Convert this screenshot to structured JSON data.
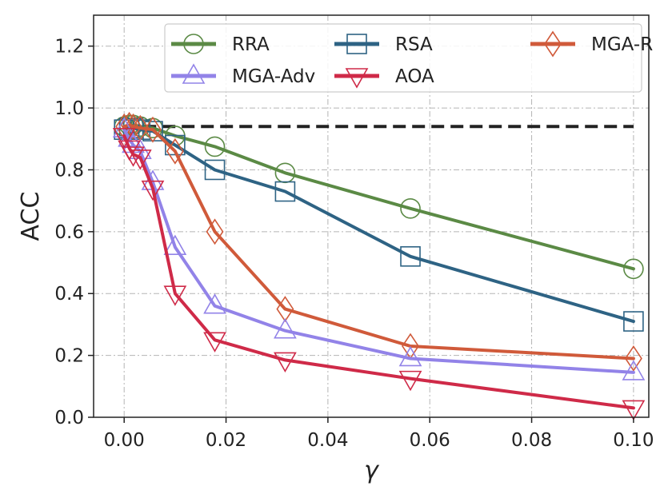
{
  "chart_data": {
    "type": "line",
    "title": "",
    "xlabel": "γ",
    "ylabel": "ACC",
    "xlim": [
      -0.006,
      0.103
    ],
    "ylim": [
      0.0,
      1.3
    ],
    "xticks": [
      0.0,
      0.02,
      0.04,
      0.06,
      0.08,
      0.1
    ],
    "xtick_labels": [
      "0.00",
      "0.02",
      "0.04",
      "0.06",
      "0.08",
      "0.10"
    ],
    "yticks": [
      0.0,
      0.2,
      0.4,
      0.6,
      0.8,
      1.0,
      1.2
    ],
    "ytick_labels": [
      "0.0",
      "0.2",
      "0.4",
      "0.6",
      "0.8",
      "1.0",
      "1.2"
    ],
    "grid": true,
    "legend_position": "top-right",
    "x": [
      0.0,
      0.001,
      0.00178,
      0.00316,
      0.00562,
      0.01,
      0.0178,
      0.0316,
      0.0562,
      0.1
    ],
    "reference_line": {
      "y": 0.94,
      "x_range": [
        0.0,
        0.1
      ],
      "style": "dashed",
      "color": "#222222"
    },
    "series": [
      {
        "name": "RRA",
        "color": "#5b8a45",
        "marker": "circle",
        "values": [
          0.94,
          0.945,
          0.945,
          0.94,
          0.935,
          0.91,
          0.875,
          0.79,
          0.675,
          0.48
        ]
      },
      {
        "name": "RSA",
        "color": "#2e6384",
        "marker": "square",
        "values": [
          0.93,
          0.935,
          0.935,
          0.93,
          0.925,
          0.88,
          0.8,
          0.73,
          0.52,
          0.31
        ]
      },
      {
        "name": "MGA-R",
        "color": "#d05a3a",
        "marker": "diamond",
        "values": [
          0.94,
          0.945,
          0.94,
          0.935,
          0.93,
          0.86,
          0.6,
          0.35,
          0.23,
          0.19
        ]
      },
      {
        "name": "MGA-Adv",
        "color": "#9283e8",
        "marker": "triangle-up",
        "values": [
          0.93,
          0.9,
          0.88,
          0.86,
          0.76,
          0.55,
          0.36,
          0.28,
          0.19,
          0.145
        ]
      },
      {
        "name": "AOA",
        "color": "#cf2a48",
        "marker": "triangle-down",
        "values": [
          0.91,
          0.87,
          0.85,
          0.84,
          0.74,
          0.4,
          0.25,
          0.185,
          0.125,
          0.03
        ]
      }
    ]
  }
}
